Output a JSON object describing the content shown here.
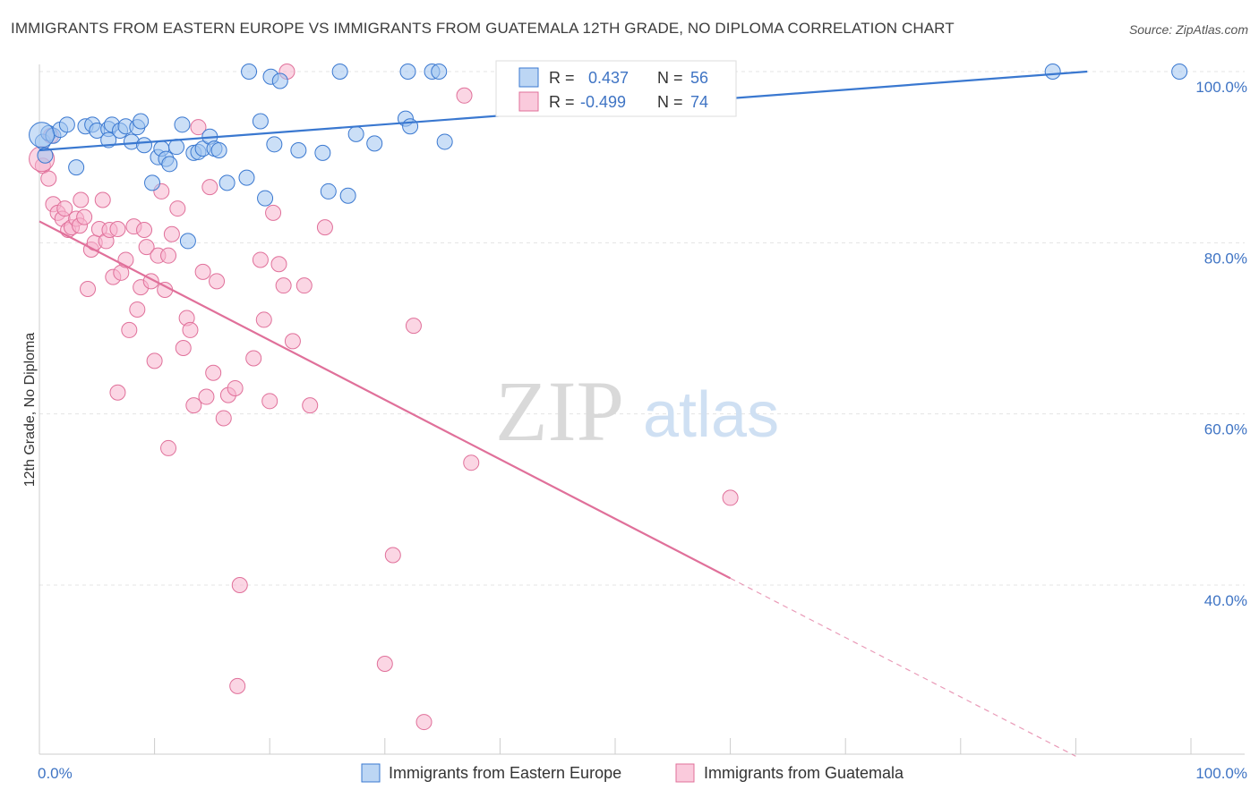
{
  "title": "IMMIGRANTS FROM EASTERN EUROPE VS IMMIGRANTS FROM GUATEMALA 12TH GRADE, NO DIPLOMA CORRELATION CHART",
  "source": "Source: ZipAtlas.com",
  "watermark": {
    "zip": "ZIP",
    "atlas": "atlas"
  },
  "colors": {
    "blue": "#3a78d0",
    "blue_fill": "rgba(160,196,240,0.55)",
    "pink": "#e0709a",
    "pink_fill": "rgba(248,180,205,0.55)"
  },
  "legend_box": {
    "r_label": "R =",
    "n_label": "N =",
    "rows": [
      {
        "r": "0.437",
        "n": "56"
      },
      {
        "r": "-0.499",
        "n": "74"
      }
    ]
  },
  "chart_data": {
    "type": "scatter",
    "title": "IMMIGRANTS FROM EASTERN EUROPE VS IMMIGRANTS FROM GUATEMALA 12TH GRADE, NO DIPLOMA CORRELATION CHART",
    "xlabel": "",
    "ylabel": "12th Grade, No Diploma",
    "xlim": [
      0,
      100
    ],
    "ylim": [
      20,
      102
    ],
    "x_tick_labels": [
      "0.0%",
      "100.0%"
    ],
    "y_tick_labels": [
      "100.0%",
      "80.0%",
      "60.0%",
      "40.0%"
    ],
    "y_ticks": [
      100,
      80,
      60,
      40
    ],
    "grid": true,
    "legend_position": "bottom",
    "series": [
      {
        "name": "Immigrants from Eastern Europe",
        "color": "#3a78d0",
        "r": 0.437,
        "n": 56,
        "trend": {
          "x0": 0,
          "y0": 90.8,
          "x1": 91,
          "y1": 100
        },
        "points": [
          [
            0.3,
            91.8
          ],
          [
            0.8,
            92.8
          ],
          [
            1.2,
            92.5
          ],
          [
            1.8,
            93.2
          ],
          [
            2.4,
            93.8
          ],
          [
            3.2,
            88.8
          ],
          [
            4.0,
            93.6
          ],
          [
            4.6,
            93.8
          ],
          [
            5.0,
            93.1
          ],
          [
            6.0,
            93.3
          ],
          [
            6.3,
            93.8
          ],
          [
            6.0,
            92.0
          ],
          [
            7.0,
            93.1
          ],
          [
            7.5,
            93.6
          ],
          [
            8.0,
            91.8
          ],
          [
            8.5,
            93.5
          ],
          [
            9.1,
            91.4
          ],
          [
            8.8,
            94.2
          ],
          [
            9.8,
            87.0
          ],
          [
            10.3,
            90.0
          ],
          [
            10.6,
            91.0
          ],
          [
            11.0,
            89.8
          ],
          [
            11.3,
            89.2
          ],
          [
            11.9,
            91.2
          ],
          [
            12.4,
            93.8
          ],
          [
            12.9,
            80.2
          ],
          [
            13.4,
            90.5
          ],
          [
            13.8,
            90.6
          ],
          [
            14.2,
            91.0
          ],
          [
            14.8,
            92.4
          ],
          [
            15.2,
            91.0
          ],
          [
            15.6,
            90.8
          ],
          [
            16.3,
            87.0
          ],
          [
            18.0,
            87.6
          ],
          [
            19.2,
            94.2
          ],
          [
            19.6,
            85.2
          ],
          [
            20.4,
            91.5
          ],
          [
            22.5,
            90.8
          ],
          [
            24.6,
            90.5
          ],
          [
            25.1,
            86.0
          ],
          [
            26.8,
            85.5
          ],
          [
            27.5,
            92.7
          ],
          [
            29.1,
            91.6
          ],
          [
            31.8,
            94.5
          ],
          [
            32.2,
            93.6
          ],
          [
            35.2,
            91.8
          ],
          [
            18.2,
            100
          ],
          [
            20.1,
            99.4
          ],
          [
            20.9,
            98.9
          ],
          [
            26.1,
            100
          ],
          [
            32.0,
            100
          ],
          [
            34.1,
            100
          ],
          [
            34.7,
            100
          ],
          [
            88.0,
            100
          ],
          [
            99.0,
            100
          ],
          [
            0.5,
            90.2
          ]
        ]
      },
      {
        "name": "Immigrants from Guatemala",
        "color": "#e0709a",
        "r": -0.499,
        "n": 74,
        "trend": {
          "x0": 0,
          "y0": 82.5,
          "x1": 60,
          "y1": 40.8
        },
        "trend_dashed": {
          "x0": 60,
          "y0": 40.8,
          "x1": 90,
          "y1": 20
        },
        "points": [
          [
            0.3,
            89.0
          ],
          [
            0.8,
            87.5
          ],
          [
            1.2,
            84.5
          ],
          [
            1.6,
            83.5
          ],
          [
            2.0,
            82.8
          ],
          [
            2.2,
            84.0
          ],
          [
            2.5,
            81.5
          ],
          [
            2.8,
            81.8
          ],
          [
            3.2,
            82.8
          ],
          [
            3.5,
            82.0
          ],
          [
            3.9,
            83.0
          ],
          [
            3.6,
            85.0
          ],
          [
            4.2,
            74.6
          ],
          [
            4.5,
            79.2
          ],
          [
            4.8,
            80.0
          ],
          [
            5.2,
            81.6
          ],
          [
            5.5,
            85.0
          ],
          [
            5.8,
            80.2
          ],
          [
            6.1,
            81.5
          ],
          [
            6.4,
            76.0
          ],
          [
            6.8,
            81.6
          ],
          [
            7.1,
            76.5
          ],
          [
            7.5,
            78.0
          ],
          [
            7.8,
            69.8
          ],
          [
            8.2,
            81.9
          ],
          [
            8.5,
            72.2
          ],
          [
            8.8,
            74.8
          ],
          [
            9.1,
            81.5
          ],
          [
            9.3,
            79.5
          ],
          [
            9.7,
            75.5
          ],
          [
            10.0,
            66.2
          ],
          [
            10.3,
            78.5
          ],
          [
            10.6,
            86.0
          ],
          [
            10.9,
            74.5
          ],
          [
            11.2,
            78.5
          ],
          [
            11.5,
            81.0
          ],
          [
            12.0,
            84.0
          ],
          [
            12.5,
            67.7
          ],
          [
            12.8,
            71.2
          ],
          [
            13.1,
            69.8
          ],
          [
            13.4,
            61.0
          ],
          [
            13.8,
            93.5
          ],
          [
            14.2,
            76.6
          ],
          [
            14.5,
            62.0
          ],
          [
            14.8,
            86.5
          ],
          [
            15.1,
            64.8
          ],
          [
            15.4,
            75.5
          ],
          [
            16.0,
            59.5
          ],
          [
            16.4,
            62.2
          ],
          [
            17.0,
            63.0
          ],
          [
            18.6,
            66.5
          ],
          [
            19.2,
            78.0
          ],
          [
            19.5,
            71.0
          ],
          [
            20.0,
            61.5
          ],
          [
            20.3,
            83.5
          ],
          [
            20.8,
            77.5
          ],
          [
            21.2,
            75.0
          ],
          [
            21.5,
            100
          ],
          [
            22.0,
            68.5
          ],
          [
            23.0,
            75.0
          ],
          [
            23.5,
            61.0
          ],
          [
            24.8,
            81.8
          ],
          [
            32.5,
            70.3
          ],
          [
            36.9,
            97.2
          ],
          [
            37.5,
            54.3
          ],
          [
            60.0,
            50.2
          ],
          [
            11.2,
            56.0
          ],
          [
            6.8,
            62.5
          ],
          [
            17.4,
            40.0
          ],
          [
            17.2,
            28.2
          ],
          [
            30.0,
            30.8
          ],
          [
            30.7,
            43.5
          ],
          [
            33.4,
            24.0
          ],
          [
            1.0,
            92.5
          ]
        ]
      }
    ]
  },
  "bottom_legend": [
    {
      "label": "Immigrants from Eastern Europe"
    },
    {
      "label": "Immigrants from Guatemala"
    }
  ]
}
